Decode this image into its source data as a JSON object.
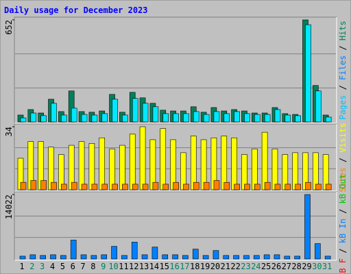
{
  "chart_data": {
    "type": "bar",
    "title": "Daily usage for December 2023",
    "categories": [
      "1",
      "2",
      "3",
      "4",
      "5",
      "6",
      "7",
      "8",
      "9",
      "10",
      "11",
      "12",
      "13",
      "14",
      "15",
      "16",
      "17",
      "18",
      "19",
      "20",
      "21",
      "22",
      "23",
      "24",
      "25",
      "26",
      "27",
      "28",
      "29",
      "30",
      "31"
    ],
    "weekend": [
      2,
      3,
      9,
      10,
      16,
      17,
      23,
      24,
      30,
      31
    ],
    "panels": [
      {
        "ylim": [
          0,
          652
        ],
        "yticks": [
          652
        ],
        "legend": [
          {
            "name": "Pages",
            "color": "#00c0ff"
          },
          {
            "name": "Files",
            "color": "#0080ff"
          },
          {
            "name": "Hits",
            "color": "#00805c"
          }
        ],
        "series": [
          {
            "name": "Hits",
            "color": "#00805c",
            "values": [
              44,
              79,
              57,
              145,
              66,
              198,
              66,
              62,
              70,
              176,
              62,
              189,
              154,
              119,
              75,
              70,
              70,
              97,
              62,
              92,
              70,
              79,
              70,
              57,
              57,
              92,
              53,
              48,
              652,
              233,
              44
            ]
          },
          {
            "name": "Files",
            "color": "#00e8ff",
            "values": [
              26,
              57,
              40,
              119,
              44,
              88,
              48,
              44,
              53,
              145,
              44,
              150,
              119,
              97,
              53,
              53,
              53,
              66,
              48,
              66,
              53,
              66,
              53,
              48,
              48,
              79,
              44,
              40,
              621,
              198,
              31
            ]
          }
        ]
      },
      {
        "ylim": [
          0,
          34
        ],
        "yticks": [
          34
        ],
        "legend": [
          {
            "name": "Sites",
            "color": "#ff8000"
          },
          {
            "name": "Visits",
            "color": "#ffff00"
          }
        ],
        "series": [
          {
            "name": "Visits",
            "color": "#ffff00",
            "values": [
              17,
              26,
              26,
              23,
              19,
              24,
              26,
              25,
              28,
              22,
              24,
              30,
              34,
              27,
              33,
              27,
              20,
              29,
              27,
              28,
              29,
              28,
              19,
              22,
              31,
              22,
              19,
              20,
              20,
              20,
              19
            ]
          },
          {
            "name": "Sites",
            "color": "#ff8000",
            "values": [
              4,
              5,
              5,
              4,
              3,
              4,
              3,
              3,
              3,
              3,
              3,
              3,
              3,
              4,
              3,
              4,
              3,
              4,
              4,
              5,
              4,
              3,
              3,
              3,
              4,
              3,
              3,
              3,
              4,
              3,
              3
            ]
          }
        ]
      },
      {
        "ylim": [
          0,
          14022
        ],
        "yticks": [
          14022
        ],
        "legend": [
          {
            "name": "kB F",
            "color": "#ff0000"
          },
          {
            "name": "kB In",
            "color": "#0080ff"
          },
          {
            "name": "kB Out",
            "color": "#00c000"
          }
        ],
        "series": [
          {
            "name": "kB In",
            "color": "#0080ff",
            "values": [
              610,
              910,
              760,
              910,
              760,
              4100,
              910,
              760,
              910,
              2740,
              760,
              3660,
              910,
              2590,
              910,
              910,
              760,
              2130,
              760,
              1830,
              760,
              760,
              760,
              760,
              910,
              910,
              610,
              610,
              14022,
              3350,
              610
            ]
          }
        ]
      }
    ]
  }
}
